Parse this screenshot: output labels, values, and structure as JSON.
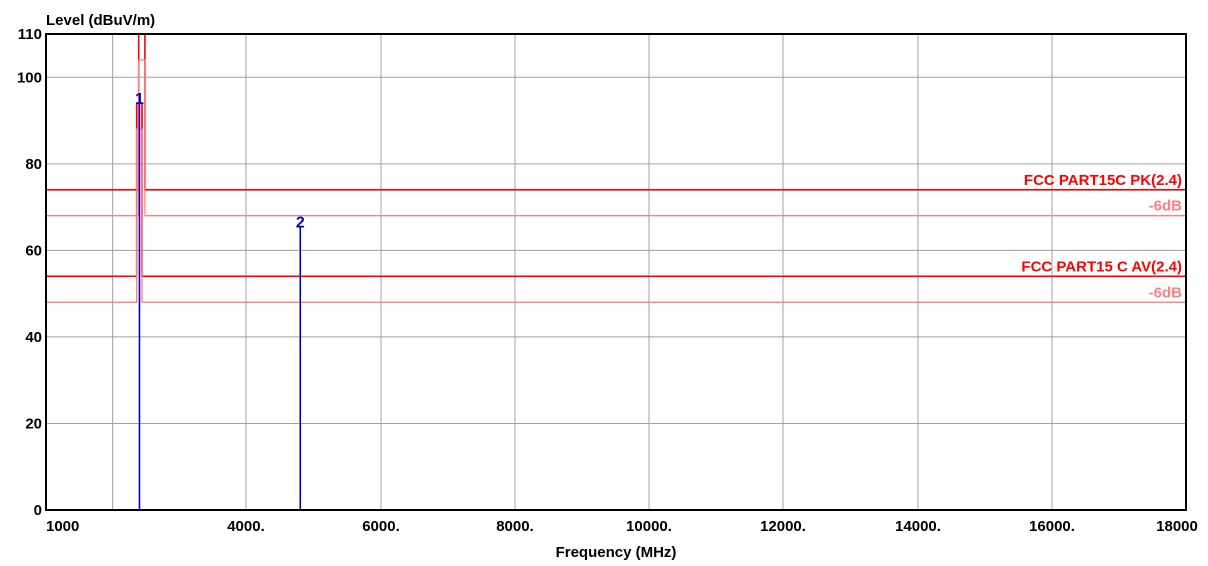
{
  "chart_data": {
    "type": "line",
    "ylabel": "Level (dBuV/m)",
    "xlabel": "Frequency (MHz)",
    "xlim": [
      1000,
      18000
    ],
    "ylim": [
      0,
      110
    ],
    "x_ticks": [
      {
        "value": 1000,
        "label": "1000"
      },
      {
        "value": 4000,
        "label": "4000."
      },
      {
        "value": 6000,
        "label": "6000."
      },
      {
        "value": 8000,
        "label": "8000."
      },
      {
        "value": 10000,
        "label": "10000."
      },
      {
        "value": 12000,
        "label": "12000."
      },
      {
        "value": 14000,
        "label": "14000."
      },
      {
        "value": 16000,
        "label": "16000."
      },
      {
        "value": 18000,
        "label": "18000"
      }
    ],
    "x_gridlines": [
      1000,
      2000,
      4000,
      6000,
      8000,
      10000,
      12000,
      14000,
      16000,
      18000
    ],
    "y_ticks": [
      {
        "value": 0,
        "label": "0"
      },
      {
        "value": 20,
        "label": "20"
      },
      {
        "value": 40,
        "label": "40"
      },
      {
        "value": 60,
        "label": "60"
      },
      {
        "value": 80,
        "label": "80"
      },
      {
        "value": 100,
        "label": "100"
      },
      {
        "value": 110,
        "label": "110"
      }
    ],
    "grid": true,
    "colors": {
      "limit": "#ff0000",
      "margin": "#ff8080",
      "marker": "#0000cc",
      "grid": "#a0a0a0",
      "frame": "#000000"
    },
    "limits": [
      {
        "label": "FCC PART15C PK(2.4)",
        "kind": "limit",
        "points": [
          [
            1000,
            74
          ],
          [
            2390,
            74
          ],
          [
            2390,
            110
          ],
          [
            2483.5,
            110
          ],
          [
            2483.5,
            74
          ],
          [
            18000,
            74
          ]
        ]
      },
      {
        "label": "-6dB",
        "kind": "margin",
        "points": [
          [
            1000,
            68
          ],
          [
            2390,
            68
          ],
          [
            2390,
            104
          ],
          [
            2483.5,
            104
          ],
          [
            2483.5,
            68
          ],
          [
            18000,
            68
          ]
        ]
      },
      {
        "label": "FCC PART15 C AV(2.4)",
        "kind": "limit",
        "points": [
          [
            1000,
            54
          ],
          [
            2360,
            54
          ],
          [
            2360,
            94
          ],
          [
            2440,
            94
          ],
          [
            2440,
            54
          ],
          [
            18000,
            54
          ]
        ]
      },
      {
        "label": "-6dB",
        "kind": "margin",
        "points": [
          [
            1000,
            48
          ],
          [
            2360,
            48
          ],
          [
            2360,
            88
          ],
          [
            2440,
            88
          ],
          [
            2440,
            48
          ],
          [
            18000,
            48
          ]
        ]
      }
    ],
    "markers": [
      {
        "label": "1",
        "x": 2402,
        "y": 94
      },
      {
        "label": "2",
        "x": 4804,
        "y": 65.5
      }
    ]
  }
}
